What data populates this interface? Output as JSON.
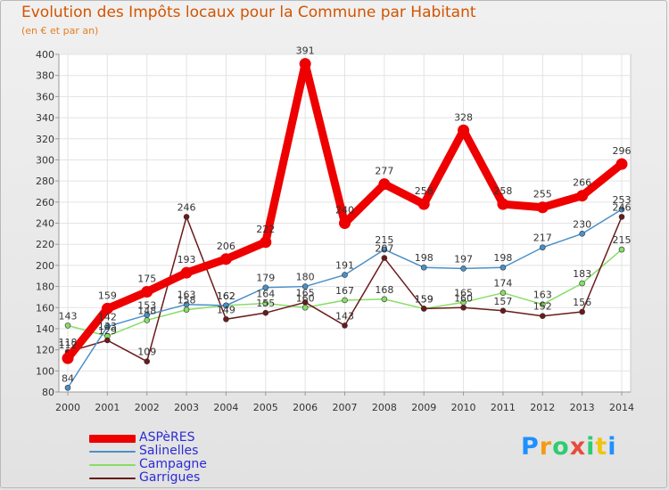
{
  "title": "Evolution des Impôts locaux pour la Commune par Habitant",
  "subtitle": "(en € et par an)",
  "logo": {
    "text": "Proxiti",
    "letters": [
      {
        "ch": "P",
        "color": "#1e90ff"
      },
      {
        "ch": "r",
        "color": "#f39c12"
      },
      {
        "ch": "o",
        "color": "#2ecc71"
      },
      {
        "ch": "x",
        "color": "#e74c3c"
      },
      {
        "ch": "i",
        "color": "#2ecc71"
      },
      {
        "ch": "t",
        "color": "#f1c40f"
      },
      {
        "ch": "i",
        "color": "#1e90ff"
      }
    ]
  },
  "chart_data": {
    "type": "line",
    "title": "Evolution des Impôts locaux pour la Commune par Habitant",
    "ylabel": "(en € et par an)",
    "xlabel": "",
    "x": [
      "2000",
      "2001",
      "2002",
      "2003",
      "2004",
      "2005",
      "2006",
      "2007",
      "2008",
      "2009",
      "2010",
      "2011",
      "2012",
      "2013",
      "2014"
    ],
    "ylim": [
      80,
      400
    ],
    "yticks": [
      80,
      100,
      120,
      140,
      160,
      180,
      200,
      220,
      240,
      260,
      280,
      300,
      320,
      340,
      360,
      380,
      400
    ],
    "grid": true,
    "legend_position": "bottom-left",
    "series": [
      {
        "name": "ASPèRES",
        "color": "#ee0000",
        "values": [
          112,
          159,
          175,
          193,
          206,
          222,
          391,
          240,
          277,
          258,
          328,
          258,
          255,
          266,
          296
        ]
      },
      {
        "name": "Salinelles",
        "color": "#4a90c8",
        "values": [
          84,
          142,
          153,
          163,
          162,
          179,
          180,
          191,
          215,
          198,
          197,
          198,
          217,
          230,
          253
        ]
      },
      {
        "name": "Campagne",
        "color": "#88dd66",
        "values": [
          143,
          133,
          148,
          158,
          162,
          164,
          160,
          167,
          168,
          159,
          165,
          174,
          163,
          183,
          215
        ]
      },
      {
        "name": "Garrigues",
        "color": "#6b1a1a",
        "values": [
          118,
          129,
          109,
          246,
          149,
          155,
          165,
          143,
          207,
          159,
          160,
          157,
          152,
          156,
          246
        ]
      }
    ]
  }
}
